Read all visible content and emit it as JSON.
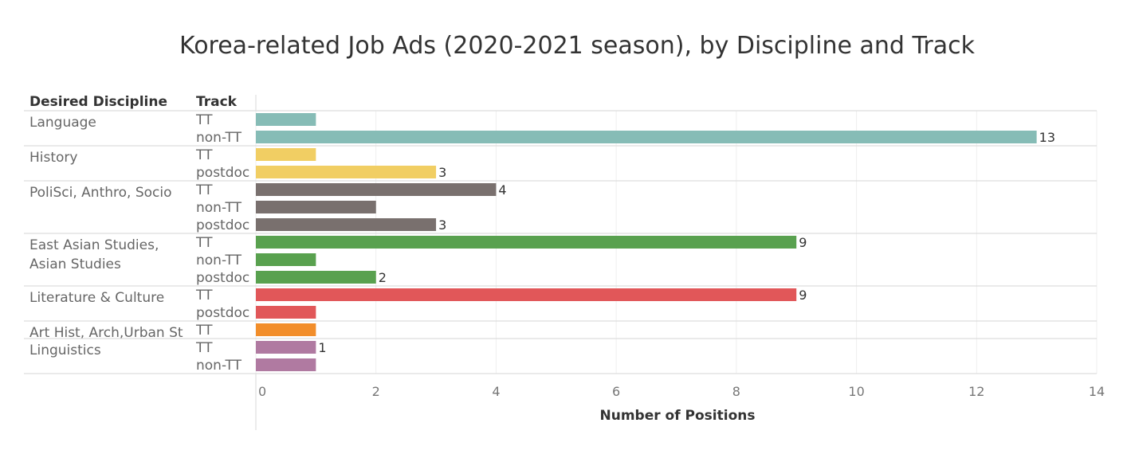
{
  "chart_data": {
    "type": "bar",
    "orientation": "horizontal",
    "title": "Korea-related Job Ads (2020-2021 season), by Discipline and Track",
    "row_headers": [
      "Desired Discipline",
      "Track"
    ],
    "xlabel": "Number of Positions",
    "xlim": [
      0,
      14
    ],
    "x_ticks": [
      "0",
      "2",
      "4",
      "6",
      "8",
      "10",
      "12",
      "14"
    ],
    "grid": true,
    "groups": [
      {
        "discipline": [
          "Language"
        ],
        "color": "#86bcb6",
        "rows": [
          {
            "track": "TT",
            "value": 1
          },
          {
            "track": "non-TT",
            "value": 13,
            "label": "13"
          }
        ]
      },
      {
        "discipline": [
          "History"
        ],
        "color": "#f1ce63",
        "rows": [
          {
            "track": "TT",
            "value": 1
          },
          {
            "track": "postdoc",
            "value": 3,
            "label": "3"
          }
        ]
      },
      {
        "discipline": [
          "PoliSci, Anthro, Socio"
        ],
        "color": "#79706e",
        "rows": [
          {
            "track": "TT",
            "value": 4,
            "label": "4"
          },
          {
            "track": "non-TT",
            "value": 2
          },
          {
            "track": "postdoc",
            "value": 3,
            "label": "3"
          }
        ]
      },
      {
        "discipline": [
          "East Asian Studies,",
          "Asian Studies"
        ],
        "color": "#59a14f",
        "rows": [
          {
            "track": "TT",
            "value": 9,
            "label": "9"
          },
          {
            "track": "non-TT",
            "value": 1
          },
          {
            "track": "postdoc",
            "value": 2,
            "label": "2"
          }
        ]
      },
      {
        "discipline": [
          "Literature & Culture"
        ],
        "color": "#e15759",
        "rows": [
          {
            "track": "TT",
            "value": 9,
            "label": "9"
          },
          {
            "track": "postdoc",
            "value": 1
          }
        ]
      },
      {
        "discipline": [
          "Art Hist, Arch,Urban St"
        ],
        "color": "#f28e2b",
        "rows": [
          {
            "track": "TT",
            "value": 1
          }
        ]
      },
      {
        "discipline": [
          "Linguistics"
        ],
        "color": "#b07aa1",
        "rows": [
          {
            "track": "TT",
            "value": 1,
            "label": "1"
          },
          {
            "track": "non-TT",
            "value": 1
          }
        ]
      }
    ]
  }
}
